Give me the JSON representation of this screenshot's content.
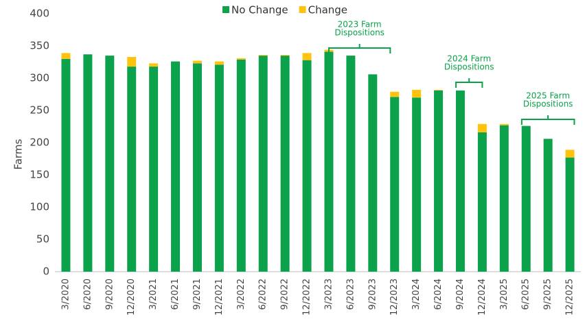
{
  "chart_data": {
    "type": "stacked_bar",
    "y_label": "Farms",
    "categories": [
      "3/2020",
      "6/2020",
      "9/2020",
      "12/2020",
      "3/2021",
      "6/2021",
      "9/2021",
      "12/2021",
      "3/2022",
      "6/2022",
      "9/2022",
      "12/2022",
      "3/2023",
      "6/2023",
      "9/2023",
      "12/2023",
      "3/2024",
      "6/2024",
      "9/2024",
      "12/2024",
      "3/2025",
      "6/2025",
      "9/2025",
      "12/2025"
    ],
    "series": [
      {
        "name": "No Change",
        "color": "#0ca24b",
        "values": [
          330,
          337,
          335,
          318,
          318,
          326,
          323,
          321,
          329,
          335,
          335,
          328,
          341,
          335,
          306,
          271,
          270,
          281,
          281,
          216,
          227,
          226,
          206,
          177
        ]
      },
      {
        "name": "Change",
        "color": "#ffc20e",
        "values": [
          9,
          0,
          0,
          15,
          5,
          0,
          4,
          5,
          2,
          1,
          1,
          11,
          3,
          0,
          0,
          8,
          12,
          1,
          0,
          13,
          2,
          0,
          0,
          12
        ]
      }
    ],
    "ylim": [
      0,
      400
    ],
    "yticks": [
      0,
      50,
      100,
      150,
      200,
      250,
      300,
      350,
      400
    ],
    "legend": "top",
    "annotations": [
      {
        "lines": [
          "2023 Farm",
          "Dispositions"
        ]
      },
      {
        "lines": [
          "2024 Farm",
          "Dispositions"
        ]
      },
      {
        "lines": [
          "2025 Farm",
          "Dispositions"
        ]
      }
    ]
  }
}
